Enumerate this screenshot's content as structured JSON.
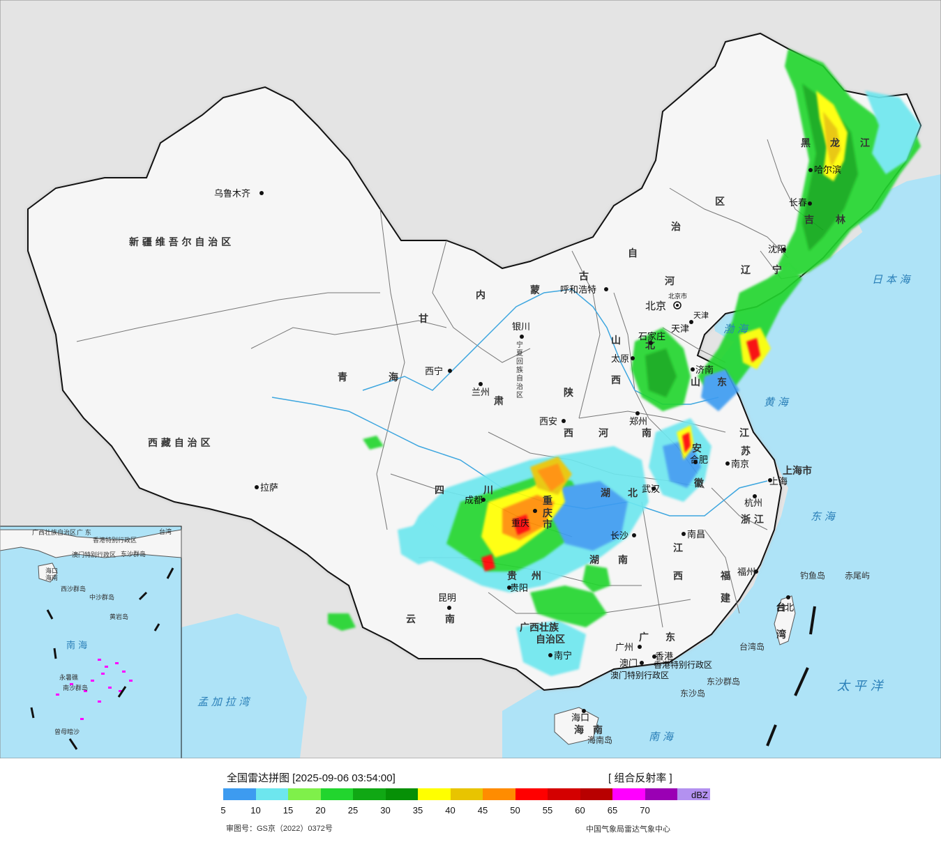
{
  "legend": {
    "title": "全国雷达拼图 [2025-09-06 03:54:00]",
    "product": "[ 组合反射率 ]",
    "unit": "dBZ",
    "ticks": [
      "5",
      "10",
      "15",
      "20",
      "25",
      "30",
      "35",
      "40",
      "45",
      "50",
      "55",
      "60",
      "65",
      "70"
    ],
    "colors": [
      "#3d9bf0",
      "#6de6ee",
      "#7ff04a",
      "#22d52e",
      "#10a814",
      "#069006",
      "#ffff00",
      "#e8c400",
      "#ff8c00",
      "#ff0000",
      "#d40000",
      "#b80000",
      "#ff00ff",
      "#9a00b4",
      "#b391f0"
    ],
    "review_no": "审图号：GS京（2022）0372号",
    "source": "中国气象局雷达气象中心"
  },
  "regions": {
    "xinjiang": "新 疆 维 吾 尔 自 治 区",
    "tibet": "西 藏 自 治 区",
    "qinghai_a": "青",
    "qinghai_b": "海",
    "gansu": "甘",
    "gansu_city": "肃",
    "nm_1": "内",
    "nm_2": "蒙",
    "nm_3": "古",
    "nm_4": "自",
    "nm_5": "治",
    "nm_6": "区",
    "hlj_1": "黑",
    "hlj_2": "龙",
    "hlj_3": "江",
    "jilin_1": "吉",
    "jilin_2": "林",
    "liaoning_1": "辽",
    "liaoning_2": "宁",
    "hebei_1": "河",
    "hebei_2": "北",
    "shanxi_1": "山",
    "shanxi_2": "西",
    "shaanxi_1": "陕",
    "shaanxi_2": "西",
    "henan_1": "河",
    "henan_2": "南",
    "shandong_1": "山",
    "shandong_2": "东",
    "jiangsu_1": "江",
    "jiangsu_2": "苏",
    "anhui_1": "安",
    "anhui_2": "徽",
    "sichuan_1": "四",
    "sichuan_2": "川",
    "chongqing_1": "重",
    "chongqing_2": "庆",
    "chongqing_3": "市",
    "hubei_1": "湖",
    "hubei_2": "北",
    "hunan_1": "湖",
    "hunan_2": "南",
    "jiangxi_1": "江",
    "jiangxi_2": "西",
    "zhejiang": "浙 江",
    "fujian_1": "福",
    "fujian_2": "建",
    "guizhou_1": "贵",
    "guizhou_2": "州",
    "yunnan_1": "云",
    "yunnan_2": "南",
    "guangxi_1": "广西壮族",
    "guangxi_2": "自治区",
    "guangdong_1": "广",
    "guangdong_2": "东",
    "hainan_1": "海",
    "hainan_2": "南",
    "taiwan_1": "台",
    "taiwan_2": "湾",
    "ningxia": "宁夏回族自治区",
    "shanghai": "上海市",
    "hk_sar": "香港特别行政区",
    "macao_sar": "澳门特别行政区",
    "beijing_city": "北京市",
    "tianjin_city": "天津"
  },
  "cities": [
    {
      "name": "乌鲁木齐"
    },
    {
      "name": "拉萨"
    },
    {
      "name": "西宁"
    },
    {
      "name": "兰州"
    },
    {
      "name": "银川"
    },
    {
      "name": "呼和浩特"
    },
    {
      "name": "北京"
    },
    {
      "name": "天津"
    },
    {
      "name": "石家庄"
    },
    {
      "name": "太原"
    },
    {
      "name": "济南"
    },
    {
      "name": "郑州"
    },
    {
      "name": "西安"
    },
    {
      "name": "合肥"
    },
    {
      "name": "南京"
    },
    {
      "name": "上海"
    },
    {
      "name": "杭州"
    },
    {
      "name": "武汉"
    },
    {
      "name": "长沙"
    },
    {
      "name": "南昌"
    },
    {
      "name": "福州"
    },
    {
      "name": "台北"
    },
    {
      "name": "成都"
    },
    {
      "name": "重庆"
    },
    {
      "name": "贵阳"
    },
    {
      "name": "昆明"
    },
    {
      "name": "南宁"
    },
    {
      "name": "广州"
    },
    {
      "name": "香港"
    },
    {
      "name": "澳门"
    },
    {
      "name": "海口"
    },
    {
      "name": "沈阳"
    },
    {
      "name": "长春"
    },
    {
      "name": "哈尔滨"
    }
  ],
  "seas": {
    "bohai": "渤 海",
    "yellow": "黄 海",
    "east": "东 海",
    "south": "南 海",
    "japan": "日 本 海",
    "pacific": "太 平 洋",
    "bengal": "孟 加 拉 湾"
  },
  "islands": {
    "diaoyu": "钓鱼岛",
    "chiwei": "赤尾屿",
    "taiwan_island": "台湾岛",
    "dongsha_islands": "东沙群岛",
    "dongsha": "东沙岛",
    "hainan_island": "海南岛"
  },
  "inset": {
    "south_sea": "南 海",
    "xisha": "西沙群岛",
    "zhongsha": "中沙群岛",
    "huangyan": "黄岩岛",
    "nansha": "南沙群岛",
    "yongshu": "永暑礁",
    "zengmu": "曾母暗沙",
    "haikou": "海口",
    "hainan": "海南",
    "guangxi_label": "广西壮族自治区",
    "guangdong_label": "广 东",
    "hk_label": "香港特别行政区",
    "macao_label": "澳门特别行政区",
    "taiwan_label": "台湾",
    "dongsha_label": "东沙群岛"
  }
}
